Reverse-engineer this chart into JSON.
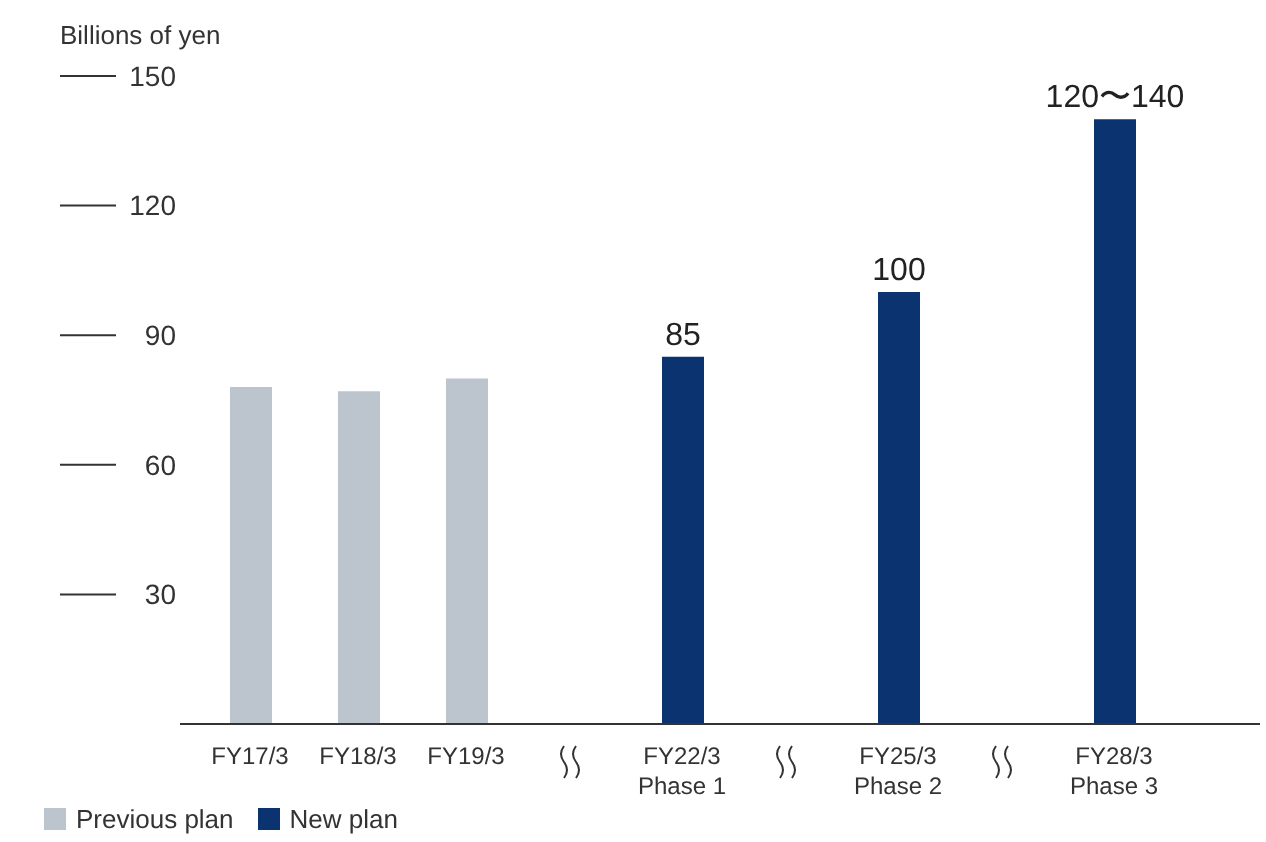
{
  "chart_data": {
    "type": "bar",
    "ylabel": "Billions of yen",
    "categories": [
      "FY17/3",
      "FY18/3",
      "FY19/3",
      null,
      "FY22/3\nPhase 1",
      null,
      "FY25/3\nPhase 2",
      null,
      "FY28/3\nPhase 3"
    ],
    "series": [
      {
        "name": "Previous plan",
        "color": "#bcc5cd",
        "values": [
          78,
          77,
          80,
          null,
          null,
          null,
          null,
          null,
          null
        ]
      },
      {
        "name": "New plan",
        "color": "#0b3370",
        "values": [
          null,
          null,
          null,
          null,
          85,
          null,
          100,
          null,
          140
        ],
        "value_labels": [
          null,
          null,
          null,
          null,
          "85",
          null,
          "100",
          null,
          "120〜140"
        ]
      }
    ],
    "ylim": [
      0,
      150
    ],
    "yticks": [
      30,
      60,
      90,
      120,
      150
    ],
    "legend": "bottom left"
  }
}
